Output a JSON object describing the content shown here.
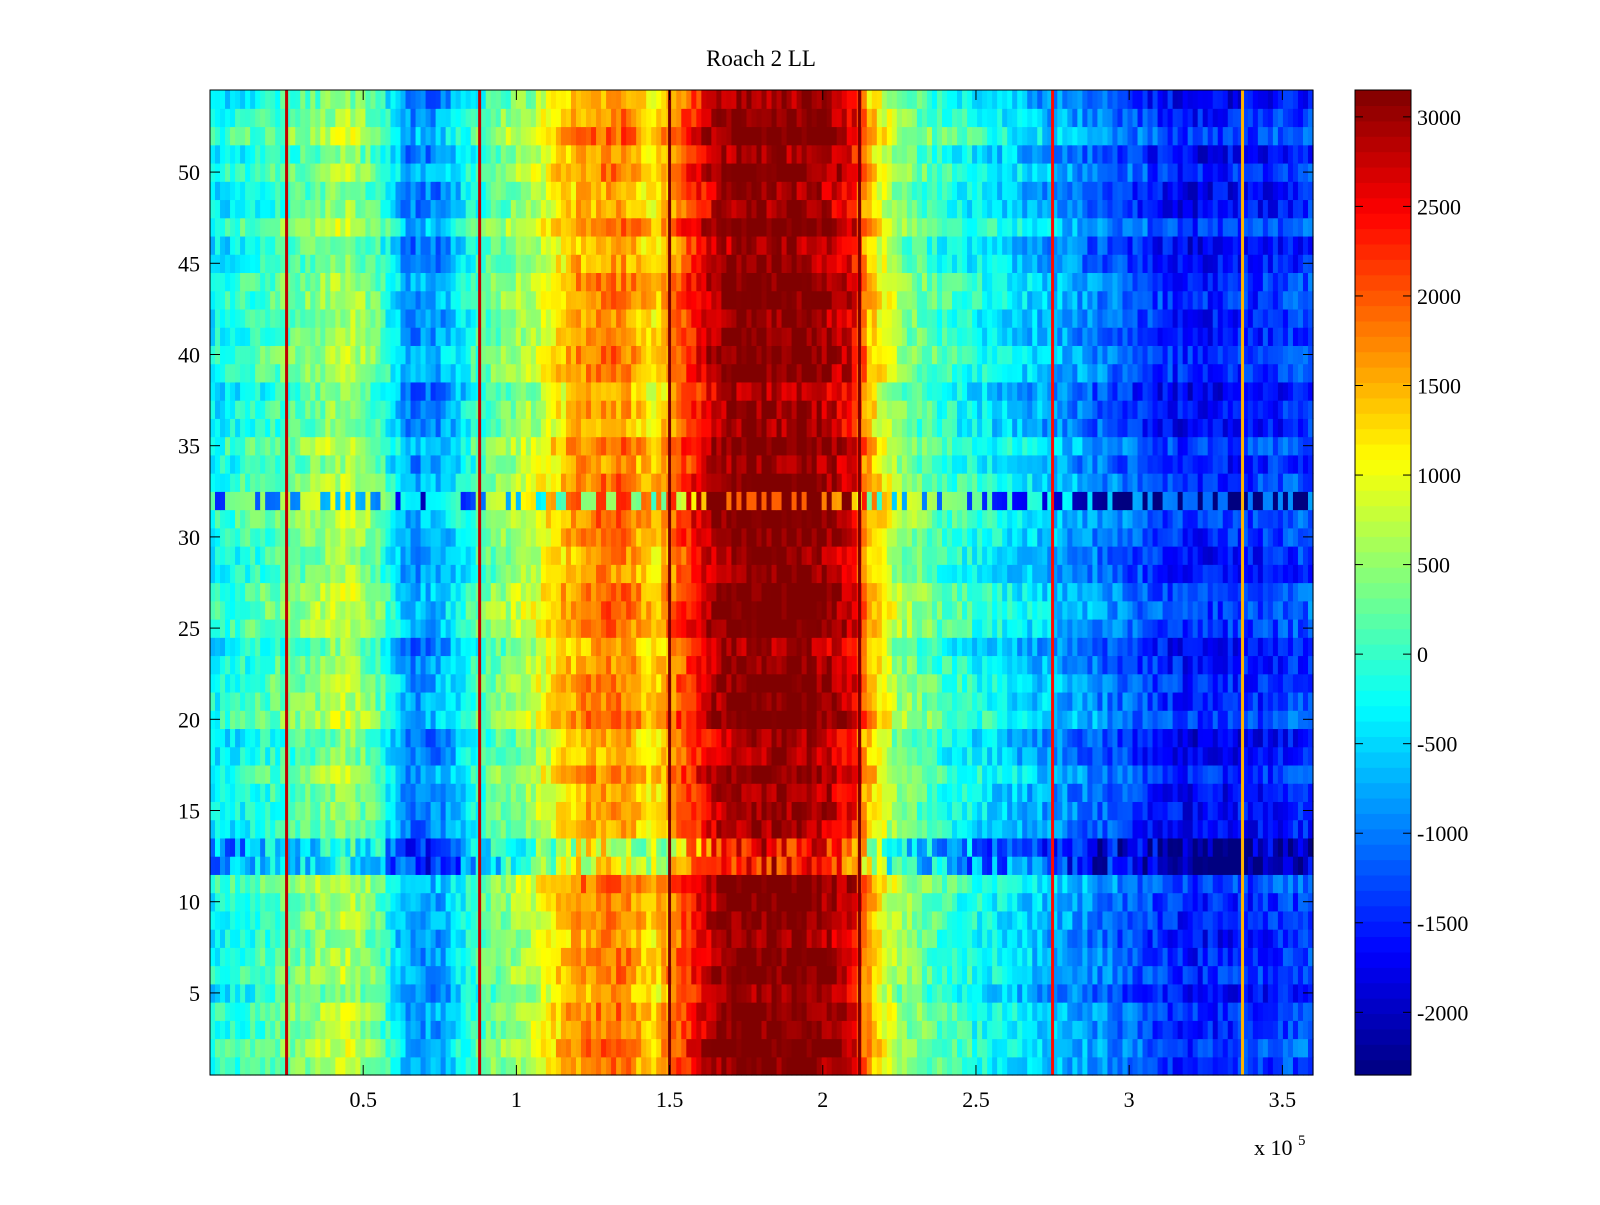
{
  "chart_data": {
    "type": "heatmap",
    "title": "Roach 2 LL",
    "xlabel": "",
    "ylabel": "",
    "x_exponent_label": {
      "base": "x 10",
      "exponent": "5"
    },
    "xlim": [
      0,
      360000
    ],
    "ylim": [
      0.5,
      54.5
    ],
    "rows": 54,
    "x_ticks": [
      {
        "value": 50000,
        "label": "0.5"
      },
      {
        "value": 100000,
        "label": "1"
      },
      {
        "value": 150000,
        "label": "1.5"
      },
      {
        "value": 200000,
        "label": "2"
      },
      {
        "value": 250000,
        "label": "2.5"
      },
      {
        "value": 300000,
        "label": "3"
      },
      {
        "value": 350000,
        "label": "3.5"
      }
    ],
    "y_ticks": [
      {
        "value": 5,
        "label": "5"
      },
      {
        "value": 10,
        "label": "10"
      },
      {
        "value": 15,
        "label": "15"
      },
      {
        "value": 20,
        "label": "20"
      },
      {
        "value": 25,
        "label": "25"
      },
      {
        "value": 30,
        "label": "30"
      },
      {
        "value": 35,
        "label": "35"
      },
      {
        "value": 40,
        "label": "40"
      },
      {
        "value": 45,
        "label": "45"
      },
      {
        "value": 50,
        "label": "50"
      }
    ],
    "colorbar": {
      "colormap": "jet",
      "clim": [
        -2350,
        3150
      ],
      "ticks": [
        {
          "value": 3000,
          "label": "3000"
        },
        {
          "value": 2500,
          "label": "2500"
        },
        {
          "value": 2000,
          "label": "2000"
        },
        {
          "value": 1500,
          "label": "1500"
        },
        {
          "value": 1000,
          "label": "1000"
        },
        {
          "value": 500,
          "label": "500"
        },
        {
          "value": 0,
          "label": "0"
        },
        {
          "value": -500,
          "label": "-500"
        },
        {
          "value": -1000,
          "label": "-1000"
        },
        {
          "value": -1500,
          "label": "-1500"
        },
        {
          "value": -2000,
          "label": "-2000"
        }
      ]
    },
    "column_profile": {
      "x": [
        0,
        15000,
        30000,
        45000,
        55000,
        65000,
        75000,
        90000,
        105000,
        120000,
        135000,
        145000,
        155000,
        165000,
        172000,
        180000,
        195000,
        200000,
        210000,
        215000,
        225000,
        240000,
        260000,
        280000,
        300000,
        320000,
        340000,
        360000
      ],
      "value": [
        -300,
        0,
        300,
        700,
        200,
        -900,
        -800,
        200,
        700,
        1600,
        1800,
        1200,
        2100,
        2900,
        3150,
        3150,
        3150,
        3000,
        2600,
        1500,
        500,
        0,
        -400,
        -800,
        -1200,
        -1600,
        -1500,
        -1300
      ]
    },
    "vertical_lines": [
      {
        "x": 25000,
        "value": 2800
      },
      {
        "x": 88000,
        "value": 2800
      },
      {
        "x": 150000,
        "value": 3150
      },
      {
        "x": 212000,
        "value": 3150
      },
      {
        "x": 275000,
        "value": 2400
      },
      {
        "x": 337000,
        "value": 1500
      }
    ],
    "anomalous_rows": [
      {
        "row": 32,
        "offset": -800,
        "note_values": "alternating values across band"
      },
      {
        "row": 12,
        "offset": -700
      },
      {
        "row": 13,
        "offset": -700
      }
    ]
  }
}
